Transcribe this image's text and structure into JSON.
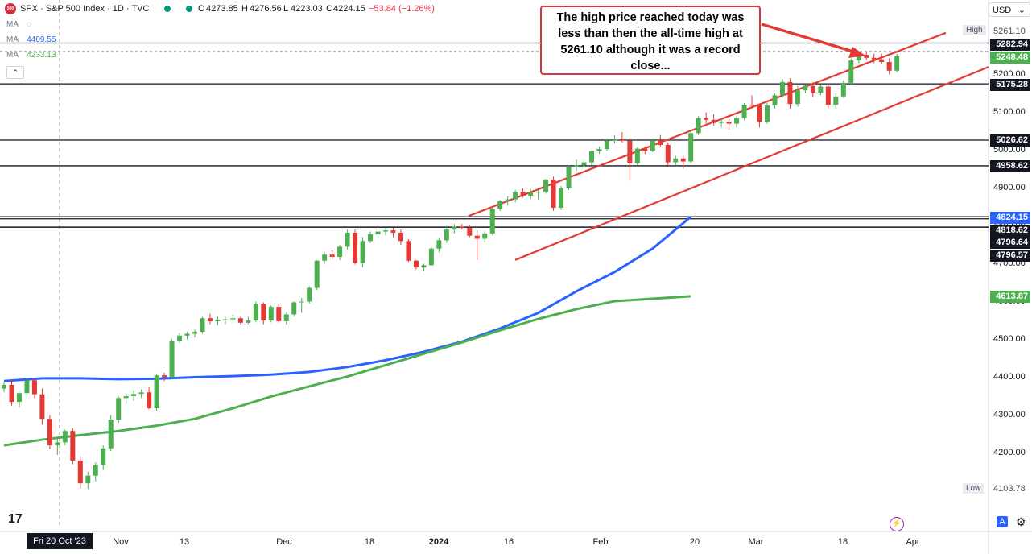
{
  "header": {
    "symbol_badge": "500",
    "title": "SPX · S&P 500 Index · 1D · TVC",
    "open_label": "O",
    "open": "4273.85",
    "high_label": "H",
    "high": "4276.56",
    "low_label": "L",
    "low": "4223.03",
    "close_label": "C",
    "close": "4224.15",
    "change": "−53.84 (−1.26%)",
    "change_color": "#f23645"
  },
  "indicators": [
    {
      "label": "MA",
      "value": "",
      "color": "#787b86"
    },
    {
      "label": "MA",
      "value": "4409.55",
      "color": "#2962ff"
    },
    {
      "label": "MA",
      "value": "4233.13",
      "color": "#4caf50"
    }
  ],
  "currency": "USD",
  "annotation": {
    "text_lines": [
      "The high price reached today was",
      "less than then the all-time high at",
      "5261.10 although it was   a record",
      "close..."
    ]
  },
  "high_low": {
    "high_label": "High",
    "high_value": "5261.10",
    "low_label": "Low",
    "low_value": "4103.78"
  },
  "price_tags": [
    {
      "value": "5282.94",
      "bg": "#131722"
    },
    {
      "value": "5248.48",
      "bg": "#4caf50"
    },
    {
      "value": "5175.28",
      "bg": "#131722"
    },
    {
      "value": "5026.62",
      "bg": "#131722"
    },
    {
      "value": "4958.62",
      "bg": "#131722"
    },
    {
      "value": "4824.15",
      "bg": "#2962ff"
    },
    {
      "value": "4818.62",
      "bg": "#131722"
    },
    {
      "value": "4796.64",
      "bg": "#131722"
    },
    {
      "value": "4796.57",
      "bg": "#131722"
    },
    {
      "value": "4613.87",
      "bg": "#4caf50"
    }
  ],
  "y_ticks": [
    "5200.00",
    "5100.00",
    "5000.00",
    "4900.00",
    "4800.00",
    "4700.00",
    "4600.00",
    "4500.00",
    "4400.00",
    "4300.00",
    "4200.00"
  ],
  "x_axis": {
    "first_label": "Fri 20 Oct '23",
    "labels": [
      "Nov",
      "13",
      "Dec",
      "18",
      "2024",
      "16",
      "Feb",
      "20",
      "Mar",
      "18",
      "Apr"
    ]
  },
  "footer": {
    "logo": "17",
    "auto_button": "A"
  },
  "chart_data": {
    "type": "candlestick",
    "ylim": [
      4050,
      5330
    ],
    "horizontal_levels": [
      5282.94,
      5175.28,
      5026.62,
      4958.62,
      4824.15,
      4818.62,
      4796.64,
      4796.57
    ],
    "dashed_level": 5261.1,
    "channel_lines": [
      {
        "x": [
          48,
          90
        ],
        "y": [
          4826,
          5310
        ]
      },
      {
        "x": [
          52,
          90
        ],
        "y": [
          4710,
          5220
        ]
      }
    ],
    "moving_averages": [
      {
        "color": "#2962ff",
        "points": [
          [
            0,
            4390
          ],
          [
            5,
            4397
          ],
          [
            10,
            4397
          ],
          [
            15,
            4395
          ],
          [
            20,
            4396
          ],
          [
            25,
            4400
          ],
          [
            30,
            4403
          ],
          [
            35,
            4407
          ],
          [
            40,
            4414
          ],
          [
            45,
            4427
          ],
          [
            50,
            4445
          ],
          [
            55,
            4467
          ],
          [
            60,
            4494
          ],
          [
            65,
            4529
          ],
          [
            70,
            4570
          ],
          [
            75,
            4627
          ],
          [
            80,
            4678
          ],
          [
            85,
            4740
          ],
          [
            90,
            4824
          ]
        ]
      },
      {
        "color": "#4caf50",
        "points": [
          [
            0,
            4220
          ],
          [
            5,
            4235
          ],
          [
            10,
            4247
          ],
          [
            15,
            4258
          ],
          [
            20,
            4272
          ],
          [
            25,
            4290
          ],
          [
            30,
            4318
          ],
          [
            35,
            4349
          ],
          [
            40,
            4376
          ],
          [
            45,
            4402
          ],
          [
            50,
            4432
          ],
          [
            55,
            4462
          ],
          [
            60,
            4492
          ],
          [
            65,
            4524
          ],
          [
            70,
            4554
          ],
          [
            75,
            4580
          ],
          [
            80,
            4601
          ],
          [
            90,
            4614
          ]
        ]
      }
    ],
    "candles": [
      [
        4370,
        4388,
        4360,
        4380
      ],
      [
        4380,
        4393,
        4325,
        4335
      ],
      [
        4335,
        4360,
        4320,
        4358
      ],
      [
        4358,
        4395,
        4345,
        4392
      ],
      [
        4392,
        4398,
        4345,
        4355
      ],
      [
        4355,
        4370,
        4275,
        4290
      ],
      [
        4290,
        4300,
        4210,
        4220
      ],
      [
        4220,
        4240,
        4195,
        4228
      ],
      [
        4228,
        4262,
        4220,
        4258
      ],
      [
        4258,
        4265,
        4170,
        4180
      ],
      [
        4180,
        4190,
        4105,
        4120
      ],
      [
        4120,
        4150,
        4105,
        4140
      ],
      [
        4140,
        4175,
        4125,
        4168
      ],
      [
        4168,
        4220,
        4155,
        4212
      ],
      [
        4212,
        4300,
        4205,
        4288
      ],
      [
        4288,
        4350,
        4280,
        4345
      ],
      [
        4345,
        4358,
        4330,
        4350
      ],
      [
        4350,
        4365,
        4338,
        4356
      ],
      [
        4356,
        4368,
        4345,
        4360
      ],
      [
        4360,
        4375,
        4315,
        4318
      ],
      [
        4318,
        4410,
        4310,
        4405
      ],
      [
        4405,
        4412,
        4390,
        4400
      ],
      [
        4400,
        4500,
        4395,
        4495
      ],
      [
        4495,
        4518,
        4490,
        4510
      ],
      [
        4510,
        4520,
        4500,
        4515
      ],
      [
        4515,
        4525,
        4505,
        4520
      ],
      [
        4520,
        4560,
        4515,
        4556
      ],
      [
        4556,
        4568,
        4540,
        4548
      ],
      [
        4548,
        4560,
        4538,
        4552
      ],
      [
        4552,
        4562,
        4540,
        4553
      ],
      [
        4553,
        4565,
        4545,
        4556
      ],
      [
        4556,
        4560,
        4540,
        4544
      ],
      [
        4544,
        4560,
        4540,
        4550
      ],
      [
        4550,
        4600,
        4545,
        4594
      ],
      [
        4594,
        4598,
        4540,
        4550
      ],
      [
        4550,
        4590,
        4545,
        4586
      ],
      [
        4586,
        4594,
        4545,
        4548
      ],
      [
        4548,
        4572,
        4540,
        4566
      ],
      [
        4566,
        4600,
        4560,
        4598
      ],
      [
        4598,
        4610,
        4570,
        4600
      ],
      [
        4600,
        4640,
        4595,
        4636
      ],
      [
        4636,
        4710,
        4630,
        4708
      ],
      [
        4708,
        4730,
        4700,
        4724
      ],
      [
        4724,
        4735,
        4710,
        4718
      ],
      [
        4718,
        4750,
        4710,
        4745
      ],
      [
        4745,
        4790,
        4738,
        4782
      ],
      [
        4782,
        4790,
        4698,
        4702
      ],
      [
        4702,
        4770,
        4690,
        4760
      ],
      [
        4760,
        4785,
        4755,
        4778
      ],
      [
        4778,
        4790,
        4770,
        4785
      ],
      [
        4785,
        4795,
        4775,
        4788
      ],
      [
        4788,
        4795,
        4770,
        4782
      ],
      [
        4782,
        4790,
        4750,
        4760
      ],
      [
        4760,
        4765,
        4705,
        4708
      ],
      [
        4708,
        4710,
        4685,
        4690
      ],
      [
        4690,
        4700,
        4680,
        4696
      ],
      [
        4696,
        4745,
        4695,
        4740
      ],
      [
        4740,
        4768,
        4730,
        4762
      ],
      [
        4762,
        4800,
        4755,
        4790
      ],
      [
        4790,
        4805,
        4780,
        4798
      ],
      [
        4798,
        4805,
        4790,
        4795
      ],
      [
        4795,
        4802,
        4770,
        4774
      ],
      [
        4774,
        4788,
        4710,
        4766
      ],
      [
        4766,
        4785,
        4755,
        4780
      ],
      [
        4780,
        4848,
        4775,
        4845
      ],
      [
        4845,
        4868,
        4840,
        4865
      ],
      [
        4865,
        4878,
        4855,
        4870
      ],
      [
        4870,
        4895,
        4862,
        4890
      ],
      [
        4890,
        4900,
        4875,
        4880
      ],
      [
        4880,
        4898,
        4870,
        4888
      ],
      [
        4888,
        4895,
        4870,
        4890
      ],
      [
        4890,
        4925,
        4885,
        4922
      ],
      [
        4922,
        4930,
        4840,
        4848
      ],
      [
        4848,
        4905,
        4842,
        4900
      ],
      [
        4900,
        4960,
        4895,
        4955
      ],
      [
        4955,
        4975,
        4945,
        4960
      ],
      [
        4960,
        4972,
        4950,
        4968
      ],
      [
        4968,
        5000,
        4960,
        4997
      ],
      [
        4997,
        5010,
        4990,
        5003
      ],
      [
        5003,
        5030,
        4998,
        5025
      ],
      [
        5025,
        5040,
        5018,
        5030
      ],
      [
        5030,
        5048,
        5020,
        5025
      ],
      [
        5025,
        5030,
        4920,
        4965
      ],
      [
        4965,
        5008,
        4960,
        5004
      ],
      [
        5004,
        5010,
        4990,
        4998
      ],
      [
        4998,
        5030,
        4995,
        5026
      ],
      [
        5026,
        5040,
        5010,
        5014
      ],
      [
        5014,
        5020,
        4955,
        4968
      ],
      [
        4968,
        4985,
        4960,
        4978
      ],
      [
        4978,
        4985,
        4950,
        4970
      ],
      [
        4970,
        5050,
        4965,
        5045
      ],
      [
        5045,
        5090,
        5040,
        5085
      ],
      [
        5085,
        5100,
        5070,
        5080
      ],
      [
        5080,
        5095,
        5065,
        5072
      ],
      [
        5072,
        5085,
        5060,
        5075
      ],
      [
        5075,
        5082,
        5055,
        5070
      ],
      [
        5070,
        5090,
        5060,
        5085
      ],
      [
        5085,
        5125,
        5080,
        5120
      ],
      [
        5120,
        5145,
        5110,
        5118
      ],
      [
        5118,
        5122,
        5060,
        5075
      ],
      [
        5075,
        5125,
        5070,
        5118
      ],
      [
        5118,
        5150,
        5110,
        5145
      ],
      [
        5145,
        5188,
        5138,
        5180
      ],
      [
        5180,
        5190,
        5110,
        5122
      ],
      [
        5122,
        5170,
        5115,
        5158
      ],
      [
        5158,
        5175,
        5150,
        5170
      ],
      [
        5170,
        5180,
        5140,
        5152
      ],
      [
        5152,
        5175,
        5145,
        5168
      ],
      [
        5168,
        5172,
        5110,
        5120
      ],
      [
        5120,
        5150,
        5110,
        5142
      ],
      [
        5142,
        5185,
        5138,
        5178
      ],
      [
        5178,
        5242,
        5172,
        5237
      ],
      [
        5237,
        5256,
        5230,
        5252
      ],
      [
        5252,
        5261,
        5238,
        5244
      ],
      [
        5244,
        5255,
        5230,
        5240
      ],
      [
        5240,
        5255,
        5228,
        5233
      ],
      [
        5233,
        5243,
        5200,
        5210
      ],
      [
        5210,
        5255,
        5205,
        5248
      ]
    ]
  }
}
